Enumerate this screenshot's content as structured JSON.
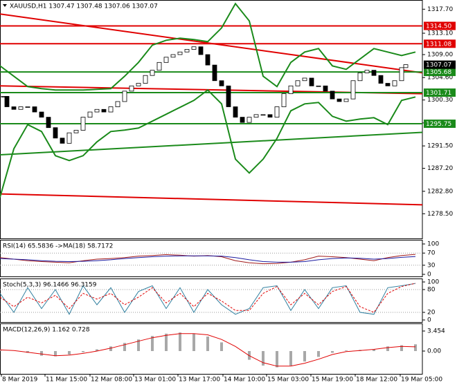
{
  "chart_data": [
    {
      "type": "candlestick",
      "title": "XAUUSD,H1  1307.47 1307.48 1307.06 1307.07",
      "xlim": [
        0,
        152.5
      ],
      "ylim": [
        1273.9,
        1319.2
      ],
      "yticks": [
        {
          "value": 1317.7,
          "label": "1317.70"
        },
        {
          "value": 1313.1,
          "label": "1313.10"
        },
        {
          "value": 1309,
          "label": "1309.00"
        },
        {
          "value": 1304.6,
          "label": "1304.60"
        },
        {
          "value": 1300.3,
          "label": "1300.30"
        },
        {
          "value": 1295.9,
          "label": "1295.90"
        },
        {
          "value": 1291.5,
          "label": "1291.50"
        },
        {
          "value": 1287.2,
          "label": "1287.20"
        },
        {
          "value": 1282.8,
          "label": "1282.80"
        },
        {
          "value": 1278.5,
          "label": "1278.50"
        }
      ],
      "x": [
        1.25,
        2.5,
        5,
        7.5,
        10,
        12.5,
        15,
        17.5,
        20,
        22.5,
        25,
        27.5,
        30,
        32.5,
        35,
        37.5,
        40,
        42.5,
        45,
        47.5,
        50,
        52.5,
        55,
        57.5,
        60,
        62.5,
        65,
        67.5,
        70,
        72.5,
        75,
        77.5,
        80,
        82.5,
        85,
        87.5,
        90,
        92.5,
        95,
        97.5,
        100,
        102.5,
        105,
        107.5,
        110,
        112.5,
        115,
        117.5,
        120,
        122.5,
        125,
        127.5,
        130,
        132.5,
        135,
        137.5,
        140,
        142.5,
        145,
        146.5
      ],
      "closes": [
        1301,
        1299,
        1298.5,
        1299,
        1299,
        1298,
        1297,
        1295,
        1293,
        1292,
        1294,
        1294.5,
        1297,
        1298,
        1298.5,
        1298,
        1299,
        1300,
        1302,
        1303,
        1303.5,
        1305,
        1306,
        1307.5,
        1308.5,
        1309,
        1309.5,
        1310,
        1310.5,
        1309,
        1307,
        1304,
        1303,
        1299,
        1297,
        1296,
        1297,
        1297.5,
        1297.5,
        1297,
        1299,
        1301.5,
        1303,
        1304,
        1304.5,
        1303,
        1303,
        1302,
        1300.5,
        1300,
        1300.5,
        1304,
        1305.5,
        1306,
        1305,
        1303.5,
        1303,
        1304,
        1306.5,
        1307.07
      ],
      "candle_colors": {
        "up": "#ffffff",
        "down": "#000000"
      },
      "band_x": [
        0,
        5,
        10,
        15,
        20,
        25,
        30,
        35,
        40,
        45,
        50,
        55,
        60,
        65,
        70,
        75,
        80,
        85,
        90,
        95,
        100,
        105,
        110,
        115,
        120,
        125,
        130,
        135,
        140,
        145,
        150
      ],
      "band_upper": [
        1306.84,
        1304.85,
        1302.87,
        1302.47,
        1302.2,
        1302.2,
        1302.2,
        1302.34,
        1302.47,
        1304.85,
        1307.5,
        1310.81,
        1311.74,
        1312.14,
        1311.87,
        1311.48,
        1314.12,
        1318.76,
        1315.45,
        1304.85,
        1302.87,
        1307.5,
        1309.49,
        1310.15,
        1306.84,
        1306.18,
        1308.16,
        1310.15,
        1309.49,
        1308.83,
        1309.49
      ],
      "band_lower": [
        1281.67,
        1290.95,
        1295.58,
        1294.26,
        1289.62,
        1288.69,
        1289.62,
        1292.27,
        1294.26,
        1294.52,
        1294.92,
        1296.24,
        1297.57,
        1298.89,
        1300.22,
        1302.2,
        1299.56,
        1288.96,
        1286.31,
        1288.96,
        1292.93,
        1298.23,
        1299.56,
        1299.82,
        1297.17,
        1296.24,
        1296.64,
        1296.91,
        1295.58,
        1300.22,
        1300.88
      ],
      "band_color": "#1a8a1a",
      "trendlines": [
        {
          "color": "#e00000",
          "x": [
            0,
            152.5
          ],
          "y": [
            1316.77,
            1305.5
          ]
        },
        {
          "color": "#e00000",
          "x": [
            0,
            152.5
          ],
          "y": [
            1303.0,
            1301.5
          ]
        },
        {
          "color": "#e00000",
          "x": [
            0,
            152.5
          ],
          "y": [
            1282.3,
            1280.2
          ]
        },
        {
          "color": "#1a8a1a",
          "x": [
            0,
            152.5
          ],
          "y": [
            1289.8,
            1294.1
          ]
        }
      ],
      "levels": [
        {
          "value": 1314.5,
          "label": "1314.50",
          "color": "#e00000"
        },
        {
          "value": 1311.08,
          "label": "1311.08",
          "color": "#e00000"
        },
        {
          "value": 1305.68,
          "label": "1305.68",
          "color": "#1a8a1a"
        },
        {
          "value": 1301.71,
          "label": "1301.71",
          "color": "#1a8a1a"
        },
        {
          "value": 1295.75,
          "label": "1295.75",
          "color": "#1a8a1a"
        }
      ],
      "last": {
        "value": 1307.07,
        "label": "1307.07",
        "color": "#000000"
      }
    },
    {
      "type": "line",
      "title": "RSI(14) 65.5836 ->MA(18) 58.7172",
      "xlim": [
        0,
        152.5
      ],
      "ylim": [
        0,
        100
      ],
      "yticks": [
        100,
        70,
        30,
        0
      ],
      "grid": true,
      "x": [
        0,
        5,
        10,
        15,
        20,
        25,
        30,
        35,
        40,
        45,
        50,
        55,
        60,
        65,
        70,
        75,
        80,
        85,
        90,
        95,
        100,
        105,
        110,
        115,
        120,
        125,
        130,
        135,
        140,
        145,
        150
      ],
      "lines": [
        {
          "color": "#a01818",
          "values": [
            55,
            50,
            45,
            42,
            40,
            38,
            45,
            50,
            52,
            55,
            60,
            62,
            65,
            63,
            60,
            62,
            58,
            45,
            38,
            35,
            36,
            40,
            48,
            60,
            58,
            55,
            50,
            45,
            55,
            62,
            65.5836
          ]
        },
        {
          "color": "#1a1aa0",
          "values": [
            52,
            50,
            48,
            45,
            43,
            42,
            43,
            45,
            48,
            52,
            55,
            58,
            60,
            61,
            61,
            61,
            60,
            55,
            48,
            42,
            40,
            40,
            42,
            48,
            52,
            54,
            53,
            50,
            52,
            56,
            58.7172
          ]
        }
      ]
    },
    {
      "type": "line",
      "title": "Stoch(5,3,3) 96.1466 96.3159",
      "xlim": [
        0,
        152.5
      ],
      "ylim": [
        0,
        100
      ],
      "yticks": [
        100,
        80,
        20,
        0
      ],
      "grid": true,
      "x": [
        0,
        5,
        10,
        15,
        20,
        25,
        30,
        35,
        40,
        45,
        50,
        55,
        60,
        65,
        70,
        75,
        80,
        85,
        90,
        95,
        100,
        105,
        110,
        115,
        120,
        125,
        130,
        135,
        140,
        145,
        150
      ],
      "lines": [
        {
          "color": "#2f7f9f",
          "values": [
            70,
            20,
            85,
            30,
            80,
            15,
            90,
            40,
            85,
            20,
            75,
            90,
            30,
            85,
            20,
            80,
            40,
            15,
            30,
            85,
            90,
            25,
            80,
            30,
            85,
            90,
            20,
            15,
            85,
            90,
            96.1466
          ]
        },
        {
          "color": "#e00000",
          "dashed": true,
          "values": [
            60,
            35,
            60,
            45,
            65,
            30,
            70,
            55,
            70,
            40,
            60,
            85,
            45,
            70,
            35,
            70,
            50,
            25,
            25,
            70,
            88,
            40,
            70,
            40,
            75,
            88,
            35,
            20,
            70,
            88,
            96.3159
          ]
        }
      ]
    },
    {
      "type": "macd",
      "title": "MACD(12,26,9) 1.162 0.728",
      "xlim": [
        0,
        152.5
      ],
      "ylim": [
        -3.454,
        3.454
      ],
      "yticks": [
        3.454,
        {
          "value": 0,
          "label": "0.00"
        }
      ],
      "x": [
        0,
        5,
        10,
        15,
        20,
        25,
        30,
        35,
        40,
        45,
        50,
        55,
        60,
        65,
        70,
        75,
        80,
        85,
        90,
        95,
        100,
        105,
        110,
        115,
        120,
        125,
        130,
        135,
        140,
        145,
        150
      ],
      "values": [
        0.3,
        0,
        -0.3,
        -0.8,
        -0.9,
        -0.6,
        -0.2,
        0.3,
        0.8,
        1.4,
        2,
        2.6,
        3,
        3.2,
        3,
        2.5,
        1.5,
        0,
        -1.5,
        -2.5,
        -2.8,
        -2.5,
        -1.8,
        -1,
        -0.3,
        0.1,
        0.2,
        0.3,
        0.8,
        1,
        1.162
      ],
      "color": "#a8a8a8",
      "signal": [
        0.2,
        0.1,
        -0.2,
        -0.5,
        -0.8,
        -0.7,
        -0.4,
        0,
        0.5,
        1.1,
        1.7,
        2.3,
        2.7,
        3,
        3,
        2.8,
        2,
        0.8,
        -0.8,
        -2,
        -2.6,
        -2.6,
        -2.1,
        -1.4,
        -0.6,
        -0.1,
        0.1,
        0.3,
        0.6,
        0.8,
        0.728
      ],
      "signal_color": "#e00000",
      "xticks": [
        {
          "value": 0.5,
          "label": "8 Mar 2019"
        },
        {
          "value": 16.25,
          "label": "11 Mar 15:00"
        },
        {
          "value": 32.5,
          "label": "12 Mar 08:00"
        },
        {
          "value": 48.25,
          "label": "13 Mar 01:00"
        },
        {
          "value": 64.25,
          "label": "13 Mar 17:00"
        },
        {
          "value": 80.5,
          "label": "14 Mar 10:00"
        },
        {
          "value": 96.25,
          "label": "15 Mar 03:00"
        },
        {
          "value": 112.25,
          "label": "15 Mar 19:00"
        },
        {
          "value": 128.25,
          "label": "18 Mar 12:00"
        },
        {
          "value": 144.5,
          "label": "19 Mar 05:00"
        }
      ]
    }
  ]
}
